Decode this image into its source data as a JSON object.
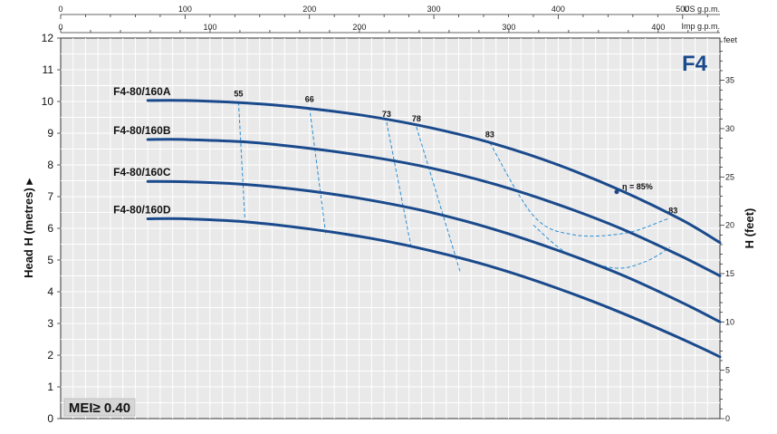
{
  "chart_data": {
    "type": "line",
    "model": "F4",
    "badge": "MEI≥ 0.40",
    "ylabel": "Head H (metres) ▸",
    "ylabel_right": "H (feet)",
    "unit_top": "US g.p.m.",
    "unit_imp": "Imp g.p.m.",
    "unit_feet": "feet",
    "x_range": [
      0,
      530
    ],
    "ylim": [
      0,
      12
    ],
    "grid": true,
    "us_ticks": [
      0,
      100,
      200,
      300,
      400,
      500
    ],
    "imp_ticks": [
      0,
      100,
      200,
      300,
      400
    ],
    "y_ticks": [
      0,
      1,
      2,
      3,
      4,
      5,
      6,
      7,
      8,
      9,
      10,
      11,
      12
    ],
    "feet_ticks": [
      0,
      5,
      10,
      15,
      20,
      25,
      30,
      35
    ],
    "series": [
      {
        "name": "F4-80/160A",
        "x": [
          70,
          100,
          150,
          200,
          250,
          300,
          350,
          400,
          450,
          500,
          530
        ],
        "y": [
          10.03,
          10.03,
          9.95,
          9.78,
          9.52,
          9.15,
          8.65,
          8.0,
          7.2,
          6.25,
          5.55
        ]
      },
      {
        "name": "F4-80/160B",
        "x": [
          70,
          100,
          150,
          200,
          250,
          300,
          350,
          400,
          450,
          500,
          530
        ],
        "y": [
          8.8,
          8.8,
          8.72,
          8.52,
          8.25,
          7.88,
          7.38,
          6.75,
          6.0,
          5.1,
          4.5
        ]
      },
      {
        "name": "F4-80/160C",
        "x": [
          70,
          100,
          150,
          200,
          250,
          300,
          350,
          400,
          450,
          500,
          530
        ],
        "y": [
          7.48,
          7.47,
          7.38,
          7.18,
          6.88,
          6.48,
          5.95,
          5.3,
          4.55,
          3.65,
          3.05
        ]
      },
      {
        "name": "F4-80/160D",
        "x": [
          70,
          100,
          150,
          200,
          250,
          300,
          350,
          400,
          450,
          500,
          530
        ],
        "y": [
          6.3,
          6.3,
          6.2,
          5.98,
          5.68,
          5.27,
          4.75,
          4.1,
          3.35,
          2.5,
          1.95
        ]
      }
    ],
    "efficiency": {
      "lines": [
        {
          "label": "55",
          "x": [
            143,
            148
          ],
          "y": [
            9.98,
            6.35
          ]
        },
        {
          "label": "66",
          "x": [
            200,
            213
          ],
          "y": [
            9.82,
            5.85
          ]
        },
        {
          "label": "73",
          "x": [
            262,
            282
          ],
          "y": [
            9.35,
            5.35
          ]
        },
        {
          "label": "78",
          "x": [
            286,
            321
          ],
          "y": [
            9.2,
            4.65
          ]
        },
        {
          "label": "83",
          "x": [
            345,
            380,
            412,
            454,
            488
          ],
          "y": [
            8.7,
            6.4,
            5.8,
            5.85,
            6.3
          ]
        },
        {
          "label": "",
          "x": [
            380,
            408,
            445,
            470,
            490
          ],
          "y": [
            6.1,
            5.2,
            4.75,
            4.95,
            5.4
          ]
        }
      ],
      "eta_label": "η = 85%",
      "eta_point": {
        "x": 447,
        "y": 7.15
      },
      "label_83_right": "83"
    }
  }
}
